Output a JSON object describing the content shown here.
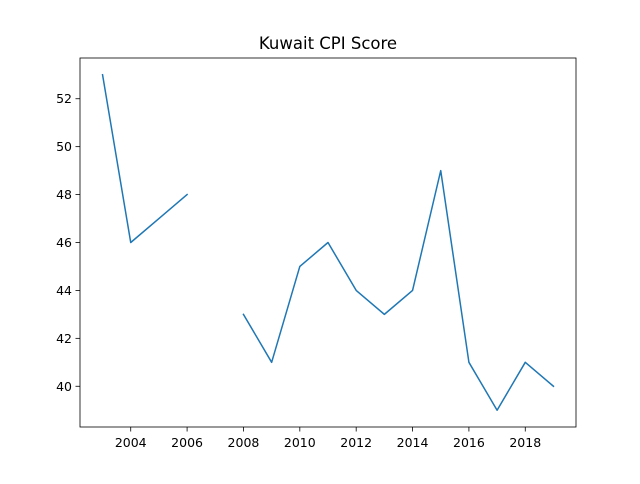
{
  "chart_data": {
    "type": "line",
    "title": "Kuwait CPI Score",
    "xlabel": "",
    "ylabel": "",
    "x": [
      2003,
      2004,
      2005,
      2006,
      2007,
      2008,
      2009,
      2010,
      2011,
      2012,
      2013,
      2014,
      2015,
      2016,
      2017,
      2018,
      2019
    ],
    "series": [
      {
        "values": [
          53,
          46,
          47,
          48,
          null,
          43,
          41,
          45,
          46,
          44,
          43,
          44,
          49,
          41,
          39,
          41,
          40
        ],
        "color": "#1f77b4"
      }
    ],
    "xlim": [
      2002.2,
      2019.8
    ],
    "ylim": [
      38.3,
      53.7
    ],
    "xticks": [
      2004,
      2006,
      2008,
      2010,
      2012,
      2014,
      2016,
      2018
    ],
    "xtick_labels": [
      "2004",
      "2006",
      "2008",
      "2010",
      "2012",
      "2014",
      "2016",
      "2018"
    ],
    "yticks": [
      40,
      42,
      44,
      46,
      48,
      50,
      52
    ],
    "ytick_labels": [
      "40",
      "42",
      "44",
      "46",
      "48",
      "50",
      "52"
    ],
    "grid": false,
    "legend": "none"
  }
}
